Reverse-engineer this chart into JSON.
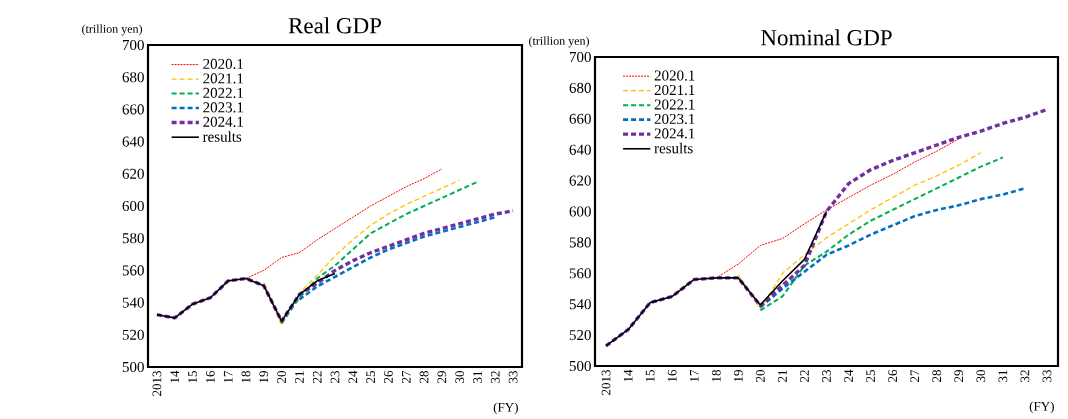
{
  "chart_data": [
    {
      "type": "line",
      "title": "Real GDP",
      "ylabel": "(trillion yen)",
      "xlabel": "(FY)",
      "categories": [
        "2013",
        "14",
        "15",
        "16",
        "17",
        "18",
        "19",
        "20",
        "21",
        "22",
        "23",
        "24",
        "25",
        "26",
        "27",
        "28",
        "29",
        "30",
        "31",
        "32",
        "33"
      ],
      "ylim": [
        500,
        700
      ],
      "yticks": [
        500,
        520,
        540,
        560,
        580,
        600,
        620,
        640,
        660,
        680,
        700
      ],
      "legend": "top left",
      "series": [
        {
          "name": "2020.1",
          "color": "#ff0000",
          "line_style": "dotted",
          "values": [
            null,
            null,
            null,
            null,
            null,
            555,
            560,
            568,
            571,
            579,
            586,
            593,
            600,
            606,
            612,
            617,
            623,
            null,
            null,
            null,
            null
          ]
        },
        {
          "name": "2021.1",
          "color": "#ffc000",
          "line_style": "dashed",
          "values": [
            null,
            null,
            null,
            null,
            null,
            null,
            552.5,
            526,
            546,
            557,
            569,
            579,
            588,
            595,
            601,
            606,
            611,
            616,
            null,
            null,
            null
          ]
        },
        {
          "name": "2022.1",
          "color": "#00b050",
          "line_style": "dashed",
          "values": [
            null,
            null,
            null,
            null,
            null,
            null,
            null,
            527,
            543,
            555,
            563,
            573,
            583,
            589,
            595,
            600,
            605,
            610,
            615,
            null,
            null
          ]
        },
        {
          "name": "2023.1",
          "color": "#0070c0",
          "line_style": "dashed",
          "values": [
            null,
            null,
            null,
            null,
            null,
            null,
            null,
            null,
            542,
            550,
            556,
            562,
            568,
            573,
            577,
            581,
            584,
            587,
            590,
            593,
            null
          ]
        },
        {
          "name": "2024.1",
          "color": "#7030a0",
          "line_style": "dashed",
          "values": [
            532.5,
            530.5,
            539,
            543,
            553.5,
            555,
            550.5,
            528.5,
            545,
            552,
            560,
            566,
            571,
            575,
            579,
            583,
            586,
            589,
            592,
            595,
            597
          ]
        },
        {
          "name": "results",
          "color": "#000000",
          "line_style": "solid",
          "values": [
            532.5,
            530.5,
            539,
            543,
            553.5,
            555,
            550.5,
            528.5,
            545,
            553.5,
            558,
            null,
            null,
            null,
            null,
            null,
            null,
            null,
            null,
            null,
            null
          ]
        }
      ]
    },
    {
      "type": "line",
      "title": "Nominal GDP",
      "ylabel": "(trillion yen)",
      "xlabel": "(FY)",
      "categories": [
        "2013",
        "14",
        "15",
        "16",
        "17",
        "18",
        "19",
        "20",
        "21",
        "22",
        "23",
        "24",
        "25",
        "26",
        "27",
        "28",
        "29",
        "30",
        "31",
        "32",
        "33"
      ],
      "ylim": [
        500,
        700
      ],
      "yticks": [
        500,
        520,
        540,
        560,
        580,
        600,
        620,
        640,
        660,
        680,
        700
      ],
      "legend": "top left",
      "series": [
        {
          "name": "2020.1",
          "color": "#ff0000",
          "line_style": "dotted",
          "values": [
            null,
            null,
            null,
            null,
            null,
            557,
            566,
            578,
            582.5,
            592,
            601,
            609,
            617,
            624,
            632,
            639,
            647,
            null,
            null,
            null,
            null
          ]
        },
        {
          "name": "2021.1",
          "color": "#ffc000",
          "line_style": "dashed",
          "values": [
            null,
            null,
            null,
            null,
            null,
            null,
            559,
            537,
            560,
            572,
            583,
            592,
            601,
            609,
            617,
            623,
            630,
            638,
            null,
            null,
            null
          ]
        },
        {
          "name": "2022.1",
          "color": "#00b050",
          "line_style": "dashed",
          "values": [
            null,
            null,
            null,
            null,
            null,
            null,
            null,
            536,
            545,
            565,
            574,
            585,
            594,
            601,
            608,
            615,
            622,
            629,
            635,
            null,
            null
          ]
        },
        {
          "name": "2023.1",
          "color": "#0070c0",
          "line_style": "dashed",
          "values": [
            null,
            null,
            null,
            null,
            null,
            null,
            null,
            538,
            550,
            561,
            572,
            578,
            585,
            591,
            597,
            601,
            604,
            608,
            611,
            615,
            null
          ]
        },
        {
          "name": "2024.1",
          "color": "#7030a0",
          "line_style": "dashed",
          "values": [
            513,
            523.5,
            541,
            545,
            556,
            557,
            557,
            539,
            552,
            565,
            600,
            618,
            627,
            633,
            638,
            643,
            648,
            652,
            657,
            661,
            666
          ]
        },
        {
          "name": "results",
          "color": "#000000",
          "line_style": "solid",
          "values": [
            513,
            523.5,
            541,
            545,
            556,
            557,
            557,
            539.5,
            555,
            569,
            600,
            null,
            null,
            null,
            null,
            null,
            null,
            null,
            null,
            null,
            null
          ]
        }
      ]
    }
  ]
}
